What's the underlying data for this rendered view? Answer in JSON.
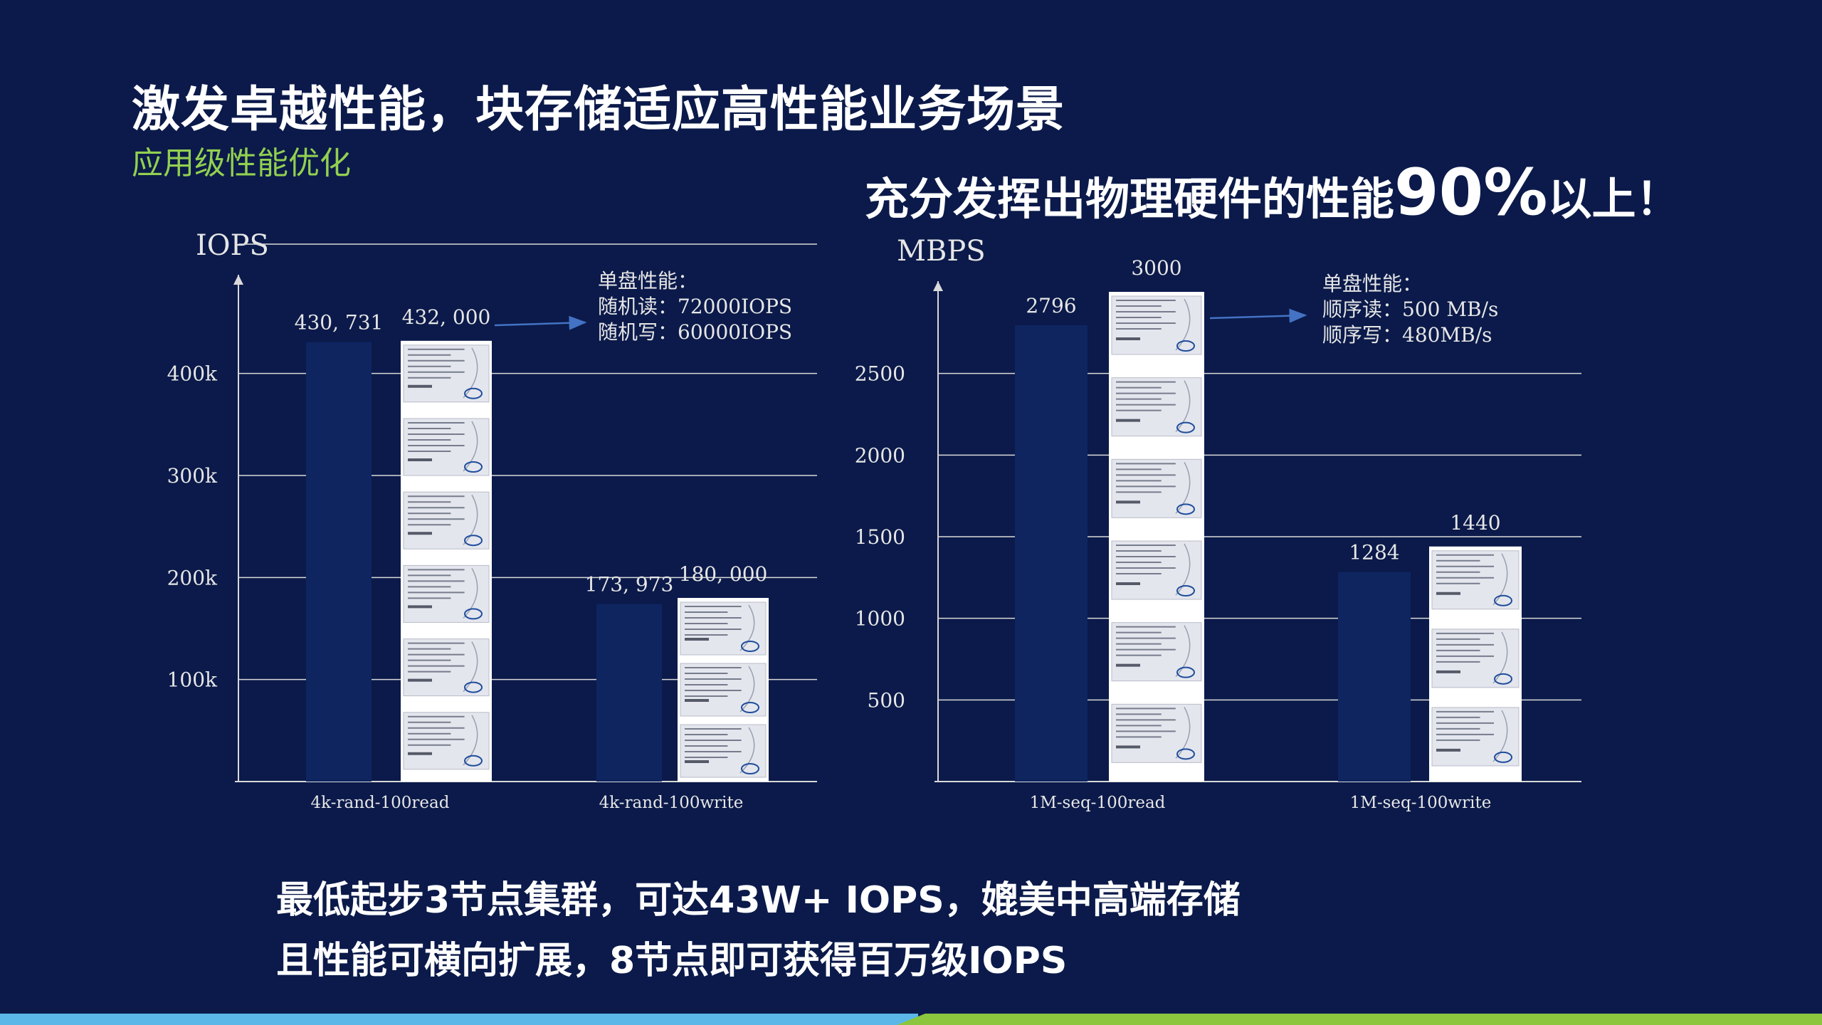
{
  "title": "激发卓越性能，块存储适应高性能业务场景",
  "subtitle": "应用级性能优化",
  "highlight": {
    "prefix": "充分发挥出物理硬件的性能",
    "big": "90%",
    "suffix": "以上！"
  },
  "bottom_lines": [
    "最低起步3节点集群，可达43W+ IOPS，媲美中高端存储",
    "且性能可横向扩展，8节点即可获得百万级IOPS"
  ],
  "colors": {
    "background": "#0b1a4a",
    "bar": "#0e2560",
    "gridline": "#d9d9d9",
    "text": "#e6e6e6",
    "arrow": "#4472c4",
    "ssd_body": "#e4e6ee",
    "ssd_frame": "#ffffff"
  },
  "chart_data": [
    {
      "type": "bar",
      "ylabel": "IOPS",
      "categories": [
        "4k-rand-100read",
        "4k-rand-100write"
      ],
      "series": [
        {
          "values": [
            430731,
            173973
          ],
          "labels": [
            "430, 731",
            "173, 973"
          ]
        }
      ],
      "hardware_reference": {
        "values": [
          432000,
          180000
        ],
        "labels": [
          "432, 000",
          "180, 000"
        ],
        "ssd_count": [
          6,
          3
        ],
        "icon": "ssd-drive-icon"
      },
      "yticks": [
        100000,
        200000,
        300000,
        400000
      ],
      "ytick_labels": [
        "100k",
        "200k",
        "300k",
        "400k"
      ],
      "ylim": [
        0,
        480000
      ],
      "grid": true,
      "annotation": {
        "lines": [
          "单盘性能：",
          "随机读：72000IOPS",
          "随机写：60000IOPS"
        ]
      }
    },
    {
      "type": "bar",
      "ylabel": "MBPS",
      "categories": [
        "1M-seq-100read",
        "1M-seq-100write"
      ],
      "series": [
        {
          "values": [
            2796,
            1284
          ],
          "labels": [
            "2796",
            "1284"
          ]
        }
      ],
      "hardware_reference": {
        "values": [
          3000,
          1440
        ],
        "labels": [
          "3000",
          "1440"
        ],
        "ssd_count": [
          6,
          3
        ],
        "icon": "ssd-drive-icon"
      },
      "yticks": [
        500,
        1000,
        1500,
        2000,
        2500
      ],
      "ytick_labels": [
        "500",
        "1000",
        "1500",
        "2000",
        "2500"
      ],
      "ylim": [
        0,
        3000
      ],
      "grid": true,
      "annotation": {
        "lines": [
          "单盘性能：",
          "顺序读：500 MB/s",
          "顺序写：480MB/s"
        ]
      }
    }
  ]
}
